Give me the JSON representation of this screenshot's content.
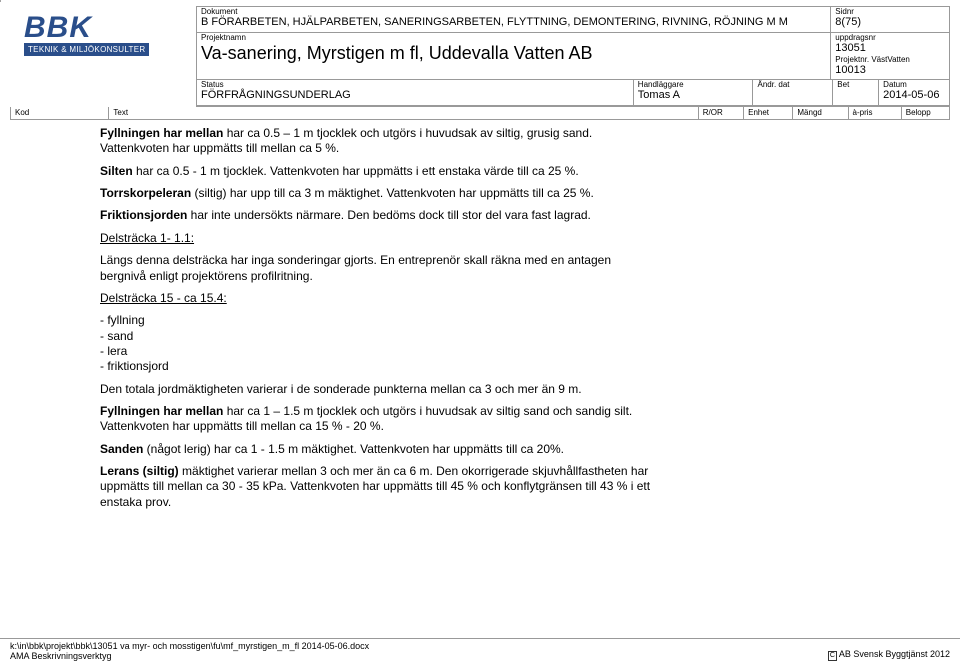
{
  "rot_char": "R",
  "logo": {
    "main": "BBK",
    "sub": "TEKNIK & MILJÖKONSULTER"
  },
  "hdr": {
    "dokument_lbl": "Dokument",
    "dokument": "B     FÖRARBETEN, HJÄLPARBETEN, SANERINGSARBETEN, FLYTTNING, DEMONTERING, RIVNING, RÖJNING M M",
    "sidnr_lbl": "Sidnr",
    "sidnr": "8(75)",
    "projektnamn_lbl": "Projektnamn",
    "projektnamn": "Va-sanering, Myrstigen m fl, Uddevalla Vatten AB",
    "uppdragsnr_lbl": "uppdragsnr",
    "uppdragsnr": "13051",
    "projektnr_lbl": "Projektnr. VästVatten",
    "projektnr": "10013",
    "status_lbl": "Status",
    "status": "FÖRFRÅGNINGSUNDERLAG",
    "handlaggare_lbl": "Handläggare",
    "handlaggare": "Tomas A",
    "andr_lbl": "Ändr. dat",
    "bet_lbl": "Bet",
    "datum_lbl": "Datum",
    "datum": "2014-05-06"
  },
  "cols": {
    "kod": "Kod",
    "text": "Text",
    "ror": "R/OR",
    "enhet": "Enhet",
    "mangd": "Mängd",
    "apris": "à-pris",
    "belopp": "Belopp"
  },
  "body": {
    "p1a": "Fyllningen har mellan",
    "p1b": " har ca 0.5 – 1 m tjocklek och utgörs i huvudsak av siltig, grusig sand. Vattenkvoten har uppmätts till mellan ca 5 %.",
    "p2a": "Silten",
    "p2b": " har ca 0.5 - 1 m tjocklek. Vattenkvoten har uppmätts i ett enstaka värde till ca 25 %.",
    "p3a": "Torrskorpeleran",
    "p3b": " (siltig) har upp till ca 3 m mäktighet. Vattenkvoten har uppmätts till ca 25 %.",
    "p4a": "Friktionsjorden",
    "p4b": " har inte undersökts närmare. Den bedöms dock till stor del vara fast lagrad.",
    "h1": "Delsträcka 1- 1.1:",
    "p5": "Längs denna delsträcka har inga sonderingar gjorts. En entreprenör skall räkna med en antagen bergnivå enligt projektörens profilritning.",
    "h2": "Delsträcka 15 - ca 15.4:",
    "li1": "- fyllning",
    "li2": "- sand",
    "li3": "- lera",
    "li4": "- friktionsjord",
    "p6": "Den totala jordmäktigheten varierar i de sonderade punkterna mellan ca 3 och mer än 9 m.",
    "p7a": "Fyllningen har mellan",
    "p7b": " har ca 1 – 1.5 m tjocklek och utgörs i huvudsak av siltig sand och sandig silt. Vattenkvoten har uppmätts till mellan ca 15 % - 20 %.",
    "p8a": "Sanden",
    "p8b": " (något lerig) har ca 1 - 1.5 m mäktighet. Vattenkvoten har uppmätts till ca 20%.",
    "p9a": "Lerans (siltig)",
    "p9b": " mäktighet varierar mellan 3 och mer än ca 6 m. Den okorrigerade skjuvhållfastheten har uppmätts till mellan ca 30 - 35 kPa. Vattenkvoten har uppmätts till 45 % och konflytgränsen till 43 % i ett enstaka prov."
  },
  "footer": {
    "path": "k:\\in\\bbk\\projekt\\bbk\\13051 va myr- och mosstigen\\fu\\mf_myrstigen_m_fl 2014-05-06.docx",
    "tool": "AMA Beskrivningsverktyg",
    "right": "AB Svensk Byggtjänst 2012",
    "copy": "C"
  }
}
